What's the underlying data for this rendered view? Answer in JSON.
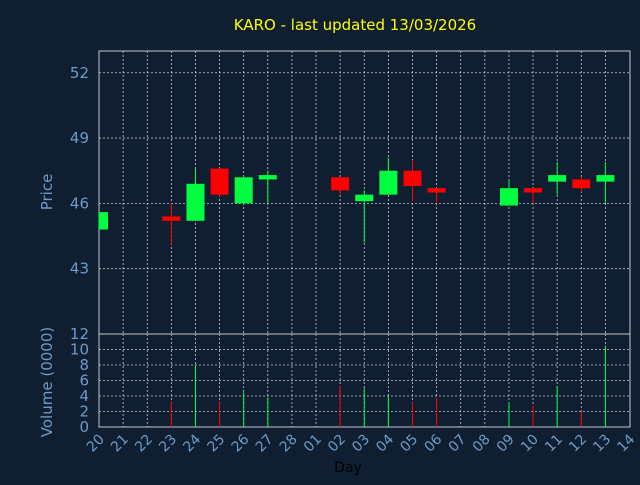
{
  "chart_data": {
    "type": "candlestick",
    "title": "KARO - last updated 13/03/2026",
    "xlabel": "Day",
    "x_ticks": [
      "20",
      "21",
      "22",
      "23",
      "24",
      "25",
      "26",
      "27",
      "28",
      "01",
      "02",
      "03",
      "04",
      "05",
      "06",
      "07",
      "08",
      "09",
      "10",
      "11",
      "12",
      "13",
      "14"
    ],
    "price_panel": {
      "ylabel": "Price",
      "ylim": [
        40.0,
        53.0
      ],
      "y_ticks": [
        43,
        46,
        49,
        52
      ],
      "grid": true
    },
    "volume_panel": {
      "ylabel": "Volume (0000)",
      "ylim": [
        0,
        12
      ],
      "y_ticks": [
        0,
        2,
        4,
        6,
        8,
        10,
        12
      ],
      "grid": true
    },
    "candles": [
      {
        "day": "20",
        "open": 44.8,
        "close": 45.6,
        "high": 45.6,
        "low": 44.8,
        "volume": 0
      },
      {
        "day": "23",
        "open": 45.4,
        "close": 45.2,
        "high": 46.0,
        "low": 44.1,
        "volume": 3.3
      },
      {
        "day": "24",
        "open": 45.2,
        "close": 46.9,
        "high": 47.6,
        "low": 45.2,
        "volume": 8.0
      },
      {
        "day": "25",
        "open": 47.6,
        "close": 46.4,
        "high": 47.6,
        "low": 46.3,
        "volume": 3.3
      },
      {
        "day": "26",
        "open": 46.0,
        "close": 47.2,
        "high": 47.2,
        "low": 46.0,
        "volume": 4.5
      },
      {
        "day": "27",
        "open": 47.1,
        "close": 47.3,
        "high": 47.5,
        "low": 46.0,
        "volume": 3.8
      },
      {
        "day": "02",
        "open": 47.2,
        "close": 46.6,
        "high": 47.2,
        "low": 46.4,
        "volume": 5.3
      },
      {
        "day": "03",
        "open": 46.1,
        "close": 46.4,
        "high": 46.6,
        "low": 44.2,
        "volume": 5.0
      },
      {
        "day": "04",
        "open": 46.4,
        "close": 47.5,
        "high": 48.1,
        "low": 46.4,
        "volume": 4.0
      },
      {
        "day": "05",
        "open": 47.5,
        "close": 46.8,
        "high": 48.0,
        "low": 46.1,
        "volume": 3.2
      },
      {
        "day": "06",
        "open": 46.7,
        "close": 46.5,
        "high": 46.7,
        "low": 46.0,
        "volume": 3.8
      },
      {
        "day": "09",
        "open": 45.9,
        "close": 46.7,
        "high": 47.1,
        "low": 45.9,
        "volume": 3.2
      },
      {
        "day": "10",
        "open": 46.7,
        "close": 46.5,
        "high": 46.7,
        "low": 46.0,
        "volume": 2.8
      },
      {
        "day": "11",
        "open": 47.0,
        "close": 47.3,
        "high": 47.9,
        "low": 46.4,
        "volume": 5.3
      },
      {
        "day": "12",
        "open": 47.1,
        "close": 46.7,
        "high": 47.2,
        "low": 46.5,
        "volume": 2.0
      },
      {
        "day": "13",
        "open": 47.0,
        "close": 47.3,
        "high": 47.9,
        "low": 46.0,
        "volume": 10.5
      }
    ],
    "colors": {
      "background": "#0f1e31",
      "up": "#00ff40",
      "down": "#ff0000",
      "grid": "#c8c8c8",
      "axis_text": "#6f9bc8",
      "title": "#ffff00"
    }
  }
}
